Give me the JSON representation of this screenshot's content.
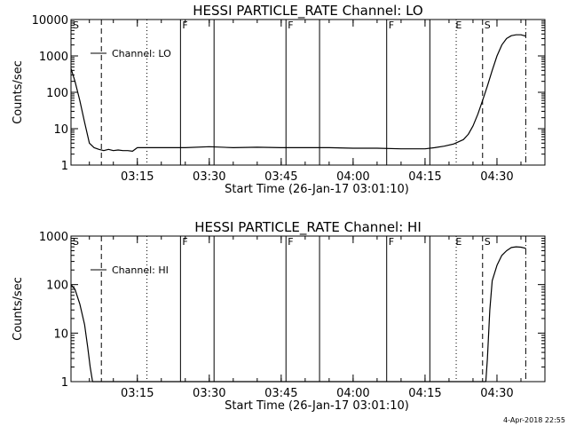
{
  "timestamp": "4-Apr-2018 22:55",
  "chart_data": [
    {
      "type": "line",
      "title": "HESSI PARTICLE_RATE Channel: LO",
      "xlabel": "Start Time (26-Jan-17 03:01:10)",
      "ylabel": "Counts/sec",
      "xlim": [
        "03:01:10",
        "04:40:00"
      ],
      "ylim": [
        1,
        10000
      ],
      "yscale": "log",
      "xticks": [
        "03:15",
        "03:30",
        "03:45",
        "04:00",
        "04:15",
        "04:30"
      ],
      "yticks": [
        "1",
        "10",
        "100",
        "1000",
        "10000"
      ],
      "legend": {
        "entry": "Channel: LO",
        "placement": "top-left"
      },
      "series": [
        {
          "name": "Channel: LO",
          "x": [
            "03:01:10",
            "03:02:00",
            "03:03:00",
            "03:04:00",
            "03:05:00",
            "03:06:00",
            "03:07:00",
            "03:08:00",
            "03:09:00",
            "03:10:00",
            "03:11:00",
            "03:12:00",
            "03:13:00",
            "03:14:00",
            "03:15:00",
            "03:20:00",
            "03:25:00",
            "03:30:00",
            "03:35:00",
            "03:40:00",
            "03:45:00",
            "03:50:00",
            "03:55:00",
            "04:00:00",
            "04:05:00",
            "04:10:00",
            "04:15:00",
            "04:17:00",
            "04:19:00",
            "04:21:00",
            "04:23:00",
            "04:24:00",
            "04:25:00",
            "04:26:00",
            "04:27:00",
            "04:28:00",
            "04:29:00",
            "04:30:00",
            "04:31:00",
            "04:32:00",
            "04:33:00",
            "04:34:00",
            "04:35:00",
            "04:36:00"
          ],
          "values": [
            450,
            200,
            60,
            15,
            4,
            3,
            2.7,
            2.5,
            2.7,
            2.5,
            2.6,
            2.5,
            2.5,
            2.4,
            3,
            3,
            3,
            3.2,
            3,
            3.1,
            3,
            3,
            3,
            2.9,
            2.9,
            2.8,
            2.8,
            3,
            3.3,
            3.8,
            5,
            7,
            12,
            25,
            60,
            150,
            400,
            1000,
            2000,
            3000,
            3600,
            3800,
            3800,
            3500
          ]
        }
      ],
      "flags": [
        {
          "label": "S",
          "time": "03:01:10"
        },
        {
          "label": "F",
          "time": "03:24:00"
        },
        {
          "label": "F",
          "time": "03:46:00"
        },
        {
          "label": "F",
          "time": "04:07:00"
        },
        {
          "label": "E",
          "time": "04:21:00"
        },
        {
          "label": "S",
          "time": "04:27:00"
        }
      ],
      "vlines": [
        {
          "time": "03:07:30",
          "style": "dashed"
        },
        {
          "time": "03:17:00",
          "style": "dotted"
        },
        {
          "time": "03:24:00",
          "style": "solid"
        },
        {
          "time": "03:31:00",
          "style": "solid"
        },
        {
          "time": "03:46:00",
          "style": "solid"
        },
        {
          "time": "03:53:00",
          "style": "solid"
        },
        {
          "time": "04:07:00",
          "style": "solid"
        },
        {
          "time": "04:16:00",
          "style": "solid"
        },
        {
          "time": "04:21:30",
          "style": "dotted"
        },
        {
          "time": "04:27:00",
          "style": "dashed"
        },
        {
          "time": "04:36:00",
          "style": "dashdot"
        }
      ]
    },
    {
      "type": "line",
      "title": "HESSI PARTICLE_RATE Channel: HI",
      "xlabel": "Start Time (26-Jan-17 03:01:10)",
      "ylabel": "Counts/sec",
      "xlim": [
        "03:01:10",
        "04:40:00"
      ],
      "ylim": [
        1,
        1000
      ],
      "yscale": "log",
      "xticks": [
        "03:15",
        "03:30",
        "03:45",
        "04:00",
        "04:15",
        "04:30"
      ],
      "yticks": [
        "1",
        "10",
        "100",
        "1000"
      ],
      "legend": {
        "entry": "Channel: HI",
        "placement": "top-left"
      },
      "series": [
        {
          "name": "Channel: HI",
          "x": [
            "03:01:10",
            "03:02:00",
            "03:03:00",
            "03:04:00",
            "03:04:40",
            "03:05:10",
            "03:05:40",
            "04:27:40",
            "04:28:00",
            "04:28:30",
            "04:29:00",
            "04:30:00",
            "04:31:00",
            "04:32:00",
            "04:33:00",
            "04:34:00",
            "04:35:00",
            "04:36:00"
          ],
          "values": [
            100,
            80,
            40,
            15,
            5,
            2,
            1,
            1,
            3,
            30,
            120,
            250,
            400,
            500,
            580,
            600,
            590,
            560
          ]
        }
      ],
      "flags": [
        {
          "label": "S",
          "time": "03:01:10"
        },
        {
          "label": "F",
          "time": "03:24:00"
        },
        {
          "label": "F",
          "time": "03:46:00"
        },
        {
          "label": "F",
          "time": "04:07:00"
        },
        {
          "label": "E",
          "time": "04:21:00"
        },
        {
          "label": "S",
          "time": "04:27:00"
        }
      ],
      "vlines": [
        {
          "time": "03:07:30",
          "style": "dashed"
        },
        {
          "time": "03:17:00",
          "style": "dotted"
        },
        {
          "time": "03:24:00",
          "style": "solid"
        },
        {
          "time": "03:31:00",
          "style": "solid"
        },
        {
          "time": "03:46:00",
          "style": "solid"
        },
        {
          "time": "03:53:00",
          "style": "solid"
        },
        {
          "time": "04:07:00",
          "style": "solid"
        },
        {
          "time": "04:16:00",
          "style": "solid"
        },
        {
          "time": "04:21:30",
          "style": "dotted"
        },
        {
          "time": "04:27:00",
          "style": "dashed"
        },
        {
          "time": "04:36:00",
          "style": "dashdot"
        }
      ]
    }
  ]
}
